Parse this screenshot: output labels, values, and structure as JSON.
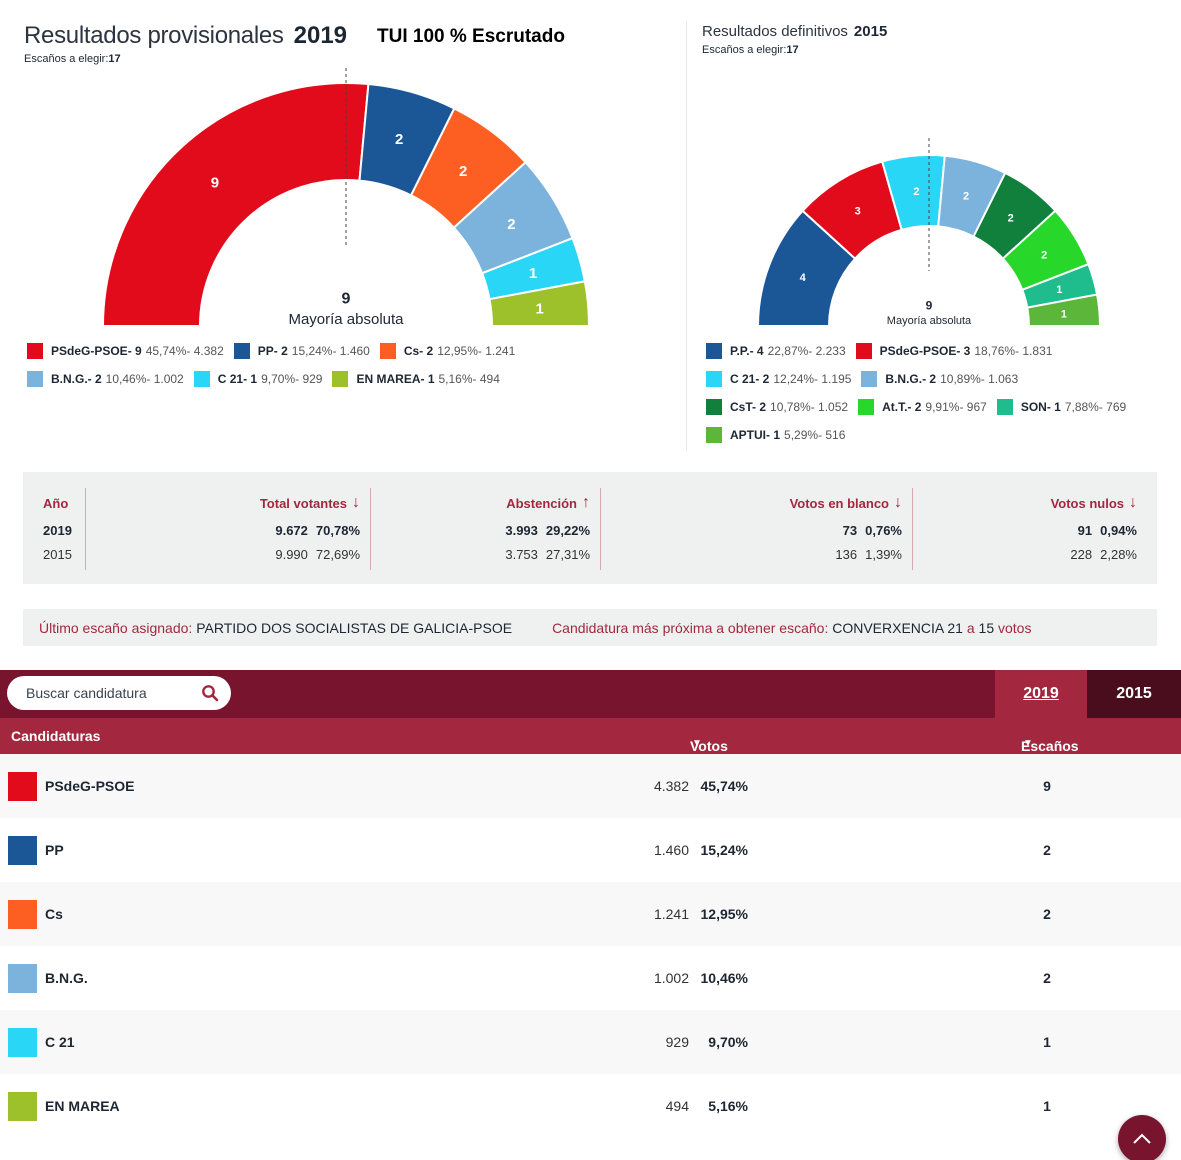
{
  "header2019": {
    "title": "Resultados provisionales",
    "year": "2019",
    "scrutiny": "TUI 100 % Escrutado",
    "seats_label": "Escaños a elegir:",
    "seats_value": "17"
  },
  "header2015": {
    "title": "Resultados definitivos",
    "year": "2015",
    "seats_label": "Escaños a elegir:",
    "seats_value": "17"
  },
  "chart_data": [
    {
      "type": "pie",
      "subtype": "half-donut parliament",
      "title": "Resultados provisionales 2019",
      "total_seats": 17,
      "majority": 9,
      "majority_label": "Mayoría absoluta",
      "categories": [
        "PSdeG-PSOE",
        "PP",
        "Cs",
        "B.N.G.",
        "C 21",
        "EN MAREA"
      ],
      "values": [
        9,
        2,
        2,
        2,
        1,
        1
      ],
      "colors": [
        "#e20b1b",
        "#1b5797",
        "#fd5f22",
        "#7bb3dc",
        "#2ad6f5",
        "#9dc12b"
      ],
      "percentages": [
        "45,74%",
        "15,24%",
        "12,95%",
        "10,46%",
        "9,70%",
        "5,16%"
      ],
      "votes": [
        "4.382",
        "1.460",
        "1.241",
        "1.002",
        "929",
        "494"
      ]
    },
    {
      "type": "pie",
      "subtype": "half-donut parliament",
      "title": "Resultados definitivos 2015",
      "total_seats": 17,
      "majority": 9,
      "majority_label": "Mayoría absoluta",
      "categories": [
        "P.P.",
        "PSdeG-PSOE",
        "C 21",
        "B.N.G.",
        "CsT",
        "At.T.",
        "SON",
        "APTUI"
      ],
      "values": [
        4,
        3,
        2,
        2,
        2,
        2,
        1,
        1
      ],
      "colors": [
        "#1b5797",
        "#e20b1b",
        "#2ad6f5",
        "#7bb3dc",
        "#12803d",
        "#27d82a",
        "#1fbd8e",
        "#5cb63a"
      ],
      "percentages": [
        "22,87%",
        "18,76%",
        "12,24%",
        "10,89%",
        "10,78%",
        "9,91%",
        "7,88%",
        "5,29%"
      ],
      "votes": [
        "2.233",
        "1.831",
        "1.195",
        "1.063",
        "1.052",
        "967",
        "769",
        "516"
      ]
    }
  ],
  "stats": {
    "headers": {
      "year": "Año",
      "total": "Total votantes",
      "abstention": "Abstención",
      "blank": "Votos en blanco",
      "null": "Votos nulos"
    },
    "arrows": {
      "total": "↓",
      "abstention": "↑",
      "blank": "↓",
      "null": "↓"
    },
    "rows": [
      {
        "year": "2019",
        "total_n": "9.672",
        "total_p": "70,78%",
        "abs_n": "3.993",
        "abs_p": "29,22%",
        "blank_n": "73",
        "blank_p": "0,76%",
        "null_n": "91",
        "null_p": "0,94%"
      },
      {
        "year": "2015",
        "total_n": "9.990",
        "total_p": "72,69%",
        "abs_n": "3.753",
        "abs_p": "27,31%",
        "blank_n": "136",
        "blank_p": "1,39%",
        "null_n": "228",
        "null_p": "2,28%"
      }
    ]
  },
  "info": {
    "last_seat_label": "Último escaño asignado:",
    "last_seat_value": "PARTIDO DOS SOCIALISTAS DE GALICIA-PSOE",
    "next_label": "Candidatura más próxima a obtener escaño:",
    "next_value": "CONVERXENCIA 21",
    "next_a": "a",
    "next_votes": "15",
    "next_votes_label": "votos"
  },
  "table": {
    "search_placeholder": "Buscar candidatura",
    "tabs": [
      "2019",
      "2015"
    ],
    "active_tab": "2019",
    "col_candidatures": "Candidaturas",
    "col_votes": "Votos",
    "col_seats": "Escaños",
    "sort_icon": "▼",
    "rows": [
      {
        "name": "PSdeG-PSOE",
        "color": "#e20b1b",
        "votes": "4.382",
        "pct": "45,74%",
        "seats": "9"
      },
      {
        "name": "PP",
        "color": "#1b5797",
        "votes": "1.460",
        "pct": "15,24%",
        "seats": "2"
      },
      {
        "name": "Cs",
        "color": "#fd5f22",
        "votes": "1.241",
        "pct": "12,95%",
        "seats": "2"
      },
      {
        "name": "B.N.G.",
        "color": "#7bb3dc",
        "votes": "1.002",
        "pct": "10,46%",
        "seats": "2"
      },
      {
        "name": "C 21",
        "color": "#2ad6f5",
        "votes": "929",
        "pct": "9,70%",
        "seats": "1"
      },
      {
        "name": "EN MAREA",
        "color": "#9dc12b",
        "votes": "494",
        "pct": "5,16%",
        "seats": "1"
      }
    ]
  }
}
